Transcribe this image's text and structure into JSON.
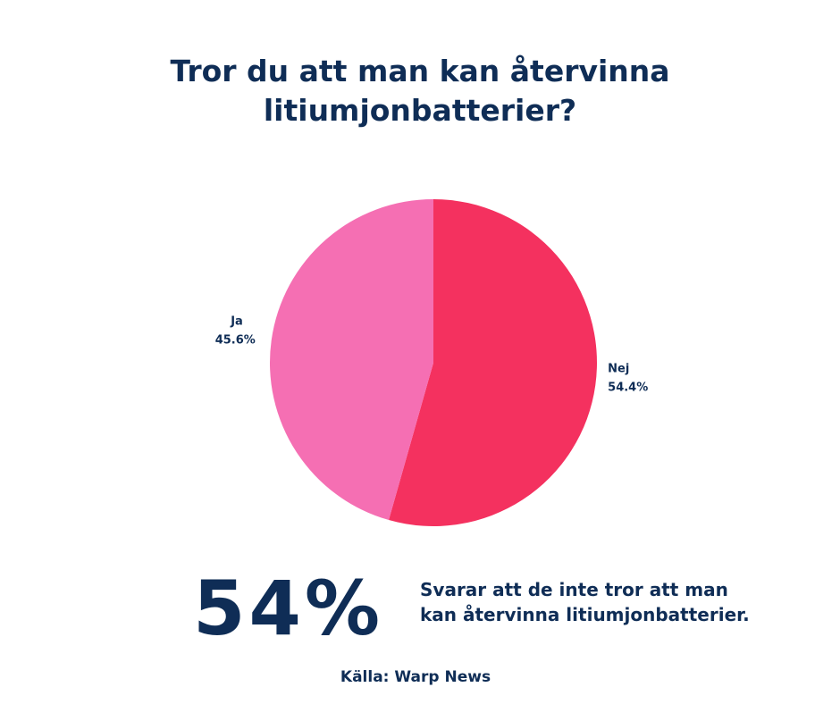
{
  "colors": {
    "text": "#0f2d56",
    "nej": "#f4315f",
    "ja": "#f56fb3",
    "background": "#ffffff"
  },
  "chart_data": {
    "type": "pie",
    "title": "Tror du att man kan återvinna litiumjonbatterier?",
    "title_lines": [
      "Tror du att man kan återvinna",
      "litiumjonbatterier?"
    ],
    "slices": [
      {
        "label": "Nej",
        "value": 54.4,
        "value_label": "54.4%",
        "color": "#f4315f"
      },
      {
        "label": "Ja",
        "value": 45.6,
        "value_label": "45.6%",
        "color": "#f56fb3"
      }
    ]
  },
  "highlight": {
    "value": "54%",
    "description_lines": [
      "Svarar att de inte tror att man",
      "kan återvinna litiumjonbatterier."
    ]
  },
  "source": "Källa: Warp News"
}
